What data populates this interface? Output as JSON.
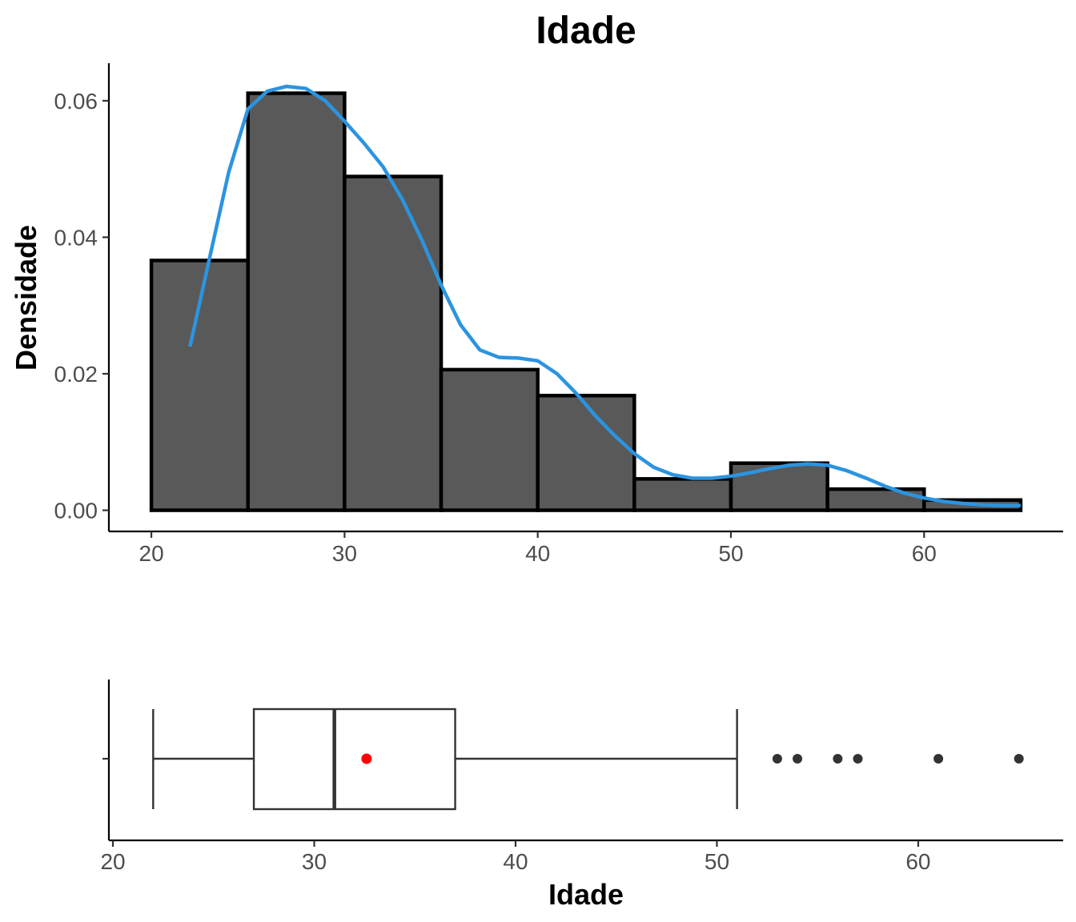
{
  "chart_data": [
    {
      "type": "histogram",
      "title": "Idade",
      "xlabel": "",
      "ylabel": "Densidade",
      "xlim": [
        17.8,
        67.2
      ],
      "ylim": [
        -0.0031,
        0.0655
      ],
      "x_ticks": [
        20,
        30,
        40,
        50,
        60
      ],
      "x_tick_labels": [
        "20",
        "30",
        "40",
        "50",
        "60"
      ],
      "y_ticks": [
        0.0,
        0.02,
        0.04,
        0.06
      ],
      "y_tick_labels": [
        "0.00",
        "0.02",
        "0.04",
        "0.06"
      ],
      "grid": false,
      "bar_fill": "#595959",
      "bar_outline": "#000000",
      "bins": [
        {
          "start": 20,
          "end": 25,
          "density": 0.0366
        },
        {
          "start": 25,
          "end": 30,
          "density": 0.0611
        },
        {
          "start": 30,
          "end": 35,
          "density": 0.0489
        },
        {
          "start": 35,
          "end": 40,
          "density": 0.0206
        },
        {
          "start": 40,
          "end": 45,
          "density": 0.0168
        },
        {
          "start": 45,
          "end": 50,
          "density": 0.0046
        },
        {
          "start": 50,
          "end": 55,
          "density": 0.0069
        },
        {
          "start": 55,
          "end": 60,
          "density": 0.0031
        },
        {
          "start": 60,
          "end": 65,
          "density": 0.0015
        }
      ],
      "density_curve": {
        "color": "#2b94e0",
        "x": [
          22,
          23,
          24,
          25,
          26,
          27,
          28,
          29,
          30,
          31,
          32,
          33,
          34,
          35,
          36,
          37,
          38,
          39,
          40,
          41,
          42,
          43,
          44,
          45,
          46,
          47,
          48,
          49,
          50,
          51,
          52,
          53,
          54,
          55,
          56,
          57,
          58,
          59,
          60,
          61,
          62,
          63,
          64,
          65
        ],
        "y": [
          0.024,
          0.0368,
          0.0495,
          0.0588,
          0.0614,
          0.0621,
          0.0618,
          0.06,
          0.057,
          0.0538,
          0.0503,
          0.0455,
          0.0396,
          0.033,
          0.0272,
          0.0235,
          0.0224,
          0.0223,
          0.0219,
          0.02,
          0.0171,
          0.0138,
          0.0109,
          0.0083,
          0.0063,
          0.0052,
          0.0047,
          0.0047,
          0.005,
          0.0055,
          0.0061,
          0.0066,
          0.0068,
          0.0066,
          0.0058,
          0.0047,
          0.0035,
          0.0025,
          0.0018,
          0.0013,
          0.001,
          0.0008,
          0.0007,
          0.0007
        ]
      }
    },
    {
      "type": "boxplot",
      "xlabel": "Idade",
      "xlim": [
        19.8,
        67.2
      ],
      "x_ticks": [
        20,
        30,
        40,
        50,
        60
      ],
      "x_tick_labels": [
        "20",
        "30",
        "40",
        "50",
        "60"
      ],
      "grid": false,
      "min_whisker": 22,
      "q1": 27,
      "median": 31,
      "q3": 37,
      "max_whisker": 51,
      "mean": 32.6,
      "mean_color": "#ff0000",
      "outliers": [
        53,
        54,
        56,
        57,
        61,
        65
      ]
    }
  ]
}
